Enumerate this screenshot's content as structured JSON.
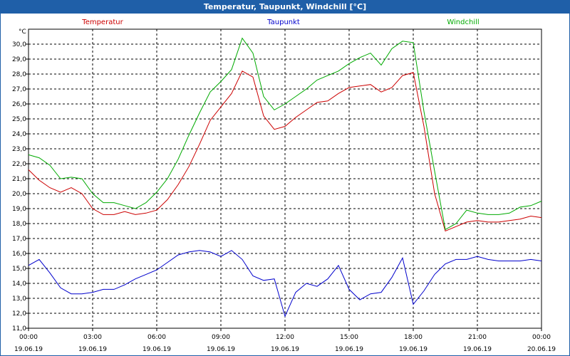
{
  "window": {
    "title": "Temperatur, Taupunkt, Windchill [°C]"
  },
  "chart_data": {
    "type": "line",
    "title": "Temperatur, Taupunkt, Windchill [°C]",
    "ylabel": "°C",
    "ylim": [
      11.0,
      31.0
    ],
    "yticks": [
      "11,0",
      "12,0",
      "13,0",
      "14,0",
      "15,0",
      "16,0",
      "17,0",
      "18,0",
      "19,0",
      "20,0",
      "21,0",
      "22,0",
      "23,0",
      "24,0",
      "25,0",
      "26,0",
      "27,0",
      "28,0",
      "29,0",
      "30,0"
    ],
    "xlim": [
      0,
      24
    ],
    "xticks": [
      {
        "time": "00:00",
        "date": "19.06.19"
      },
      {
        "time": "03:00",
        "date": "19.06.19"
      },
      {
        "time": "06:00",
        "date": "19.06.19"
      },
      {
        "time": "09:00",
        "date": "19.06.19"
      },
      {
        "time": "12:00",
        "date": "19.06.19"
      },
      {
        "time": "15:00",
        "date": "19.06.19"
      },
      {
        "time": "18:00",
        "date": "19.06.19"
      },
      {
        "time": "21:00",
        "date": "19.06.19"
      },
      {
        "time": "00:00",
        "date": "20.06.19"
      }
    ],
    "grid": true,
    "legend_position": "top",
    "series": [
      {
        "name": "Temperatur",
        "color": "#cc0000",
        "x": [
          0,
          0.5,
          1,
          1.5,
          2,
          2.5,
          3,
          3.5,
          4,
          4.5,
          5,
          5.5,
          6,
          6.5,
          7,
          7.5,
          8,
          8.5,
          9,
          9.5,
          10,
          10.5,
          11,
          11.5,
          12,
          12.5,
          13,
          13.5,
          14,
          14.5,
          15,
          15.5,
          16,
          16.5,
          17,
          17.5,
          18,
          18.5,
          19,
          19.5,
          20,
          20.5,
          21,
          21.5,
          22,
          22.5,
          23,
          23.5,
          24
        ],
        "values": [
          21.6,
          20.9,
          20.4,
          20.1,
          20.4,
          20.0,
          19.0,
          18.6,
          18.6,
          18.8,
          18.6,
          18.7,
          18.9,
          19.6,
          20.6,
          21.8,
          23.3,
          24.9,
          25.8,
          26.7,
          28.2,
          27.8,
          25.2,
          24.3,
          24.5,
          25.1,
          25.6,
          26.1,
          26.2,
          26.7,
          27.1,
          27.2,
          27.3,
          26.8,
          27.1,
          27.9,
          28.1,
          24.5,
          20.0,
          17.5,
          17.8,
          18.1,
          18.2,
          18.1,
          18.1,
          18.2,
          18.3,
          18.5,
          18.4
        ]
      },
      {
        "name": "Taupunkt",
        "color": "#0000cc",
        "x": [
          0,
          0.5,
          1,
          1.5,
          2,
          2.5,
          3,
          3.5,
          4,
          4.5,
          5,
          5.5,
          6,
          6.5,
          7,
          7.5,
          8,
          8.5,
          9,
          9.5,
          10,
          10.5,
          11,
          11.5,
          12,
          12.5,
          13,
          13.5,
          14,
          14.5,
          15,
          15.5,
          16,
          16.5,
          17,
          17.5,
          18,
          18.5,
          19,
          19.5,
          20,
          20.5,
          21,
          21.5,
          22,
          22.5,
          23,
          23.5,
          24
        ],
        "values": [
          15.2,
          15.6,
          14.7,
          13.7,
          13.3,
          13.3,
          13.4,
          13.6,
          13.6,
          13.9,
          14.3,
          14.6,
          14.9,
          15.4,
          15.9,
          16.1,
          16.2,
          16.1,
          15.8,
          16.2,
          15.6,
          14.5,
          14.2,
          14.3,
          11.8,
          13.4,
          14.0,
          13.8,
          14.3,
          15.2,
          13.6,
          12.9,
          13.3,
          13.4,
          14.4,
          15.7,
          12.6,
          13.5,
          14.6,
          15.3,
          15.6,
          15.6,
          15.8,
          15.6,
          15.5,
          15.5,
          15.5,
          15.6,
          15.5
        ]
      },
      {
        "name": "Windchill",
        "color": "#00aa00",
        "x": [
          0,
          0.5,
          1,
          1.5,
          2,
          2.5,
          3,
          3.5,
          4,
          4.5,
          5,
          5.5,
          6,
          6.5,
          7,
          7.5,
          8,
          8.5,
          9,
          9.5,
          10,
          10.5,
          11,
          11.5,
          12,
          12.5,
          13,
          13.5,
          14,
          14.5,
          15,
          15.5,
          16,
          16.5,
          17,
          17.5,
          18,
          18.5,
          19,
          19.5,
          20,
          20.5,
          21,
          21.5,
          22,
          22.5,
          23,
          23.5,
          24
        ],
        "values": [
          22.6,
          22.4,
          21.9,
          21.0,
          21.1,
          21.0,
          20.0,
          19.4,
          19.4,
          19.2,
          19.0,
          19.4,
          20.1,
          21.0,
          22.3,
          23.9,
          25.4,
          26.8,
          27.5,
          28.3,
          30.4,
          29.4,
          26.5,
          25.6,
          26.0,
          26.5,
          27.0,
          27.6,
          27.9,
          28.2,
          28.7,
          29.1,
          29.4,
          28.6,
          29.7,
          30.2,
          30.1,
          25.5,
          21.5,
          17.6,
          18.0,
          18.9,
          18.7,
          18.6,
          18.6,
          18.7,
          19.1,
          19.2,
          19.5
        ]
      }
    ]
  }
}
